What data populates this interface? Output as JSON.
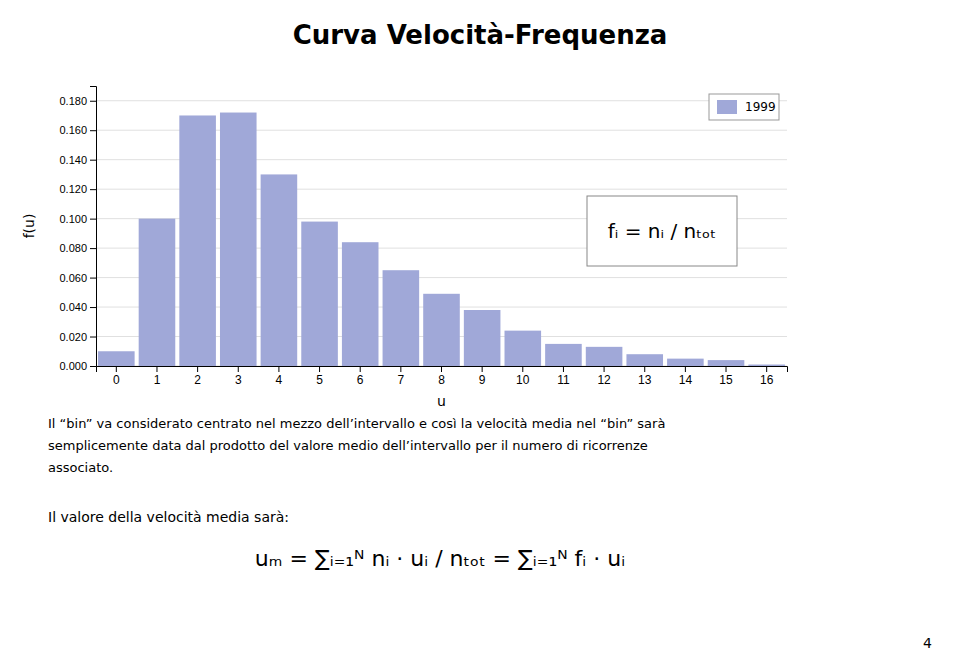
{
  "chart_data": {
    "type": "bar",
    "title": "Curva Velocità-Frequenza",
    "xlabel": "u",
    "ylabel": "f(u)",
    "categories": [
      0,
      1,
      2,
      3,
      4,
      5,
      6,
      7,
      8,
      9,
      10,
      11,
      12,
      13,
      14,
      15,
      16
    ],
    "series": [
      {
        "name": "1999",
        "color": "#a0a8d8",
        "values": [
          0.01,
          0.1,
          0.17,
          0.172,
          0.13,
          0.098,
          0.084,
          0.065,
          0.049,
          0.038,
          0.024,
          0.015,
          0.013,
          0.008,
          0.005,
          0.004,
          0.001
        ]
      }
    ],
    "ylim": [
      0.0,
      0.19
    ],
    "yticks": [
      {
        "value": 0.0,
        "label": "0.000"
      },
      {
        "value": 0.02,
        "label": "0.020"
      },
      {
        "value": 0.04,
        "label": "0.040"
      },
      {
        "value": 0.06,
        "label": "0.060"
      },
      {
        "value": 0.08,
        "label": "0.080"
      },
      {
        "value": 0.1,
        "label": "0.100"
      },
      {
        "value": 0.12,
        "label": "0.120"
      },
      {
        "value": 0.14,
        "label": "0.140"
      },
      {
        "value": 0.16,
        "label": "0.160"
      },
      {
        "value": 0.18,
        "label": "0.180"
      }
    ],
    "grid": true,
    "legend": "top-right",
    "annotations": [
      "fᵢ = nᵢ / nₜₒₜ",
      "Il “bin” va considerato centrato nel mezzo dell’intervallo e così la velocità media nel “bin” sarà",
      "semplicemente data dal prodotto del valore medio dell’intervallo per il numero di ricorrenze",
      "associato.",
      "Il valore della velocità media sarà:",
      "uₘ = ∑ᵢ₌₁ᴺ nᵢ · uᵢ / nₜₒₜ = ∑ᵢ₌₁ᴺ fᵢ · uᵢ",
      "4"
    ]
  }
}
